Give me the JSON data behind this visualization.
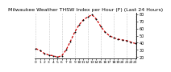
{
  "title": "Milwaukee Weather THSW Index per Hour (F) (Last 24 Hours)",
  "title_fontsize": 4.5,
  "bg_color": "#ffffff",
  "plot_bg_color": "#ffffff",
  "line_color": "#cc0000",
  "marker_color": "#000000",
  "grid_color": "#999999",
  "hours": [
    0,
    1,
    2,
    3,
    4,
    5,
    6,
    7,
    8,
    9,
    10,
    11,
    12,
    13,
    14,
    15,
    16,
    17,
    18,
    19,
    20,
    21,
    22,
    23
  ],
  "values": [
    32,
    29,
    25,
    23,
    22,
    20,
    22,
    30,
    42,
    55,
    65,
    72,
    76,
    79,
    73,
    63,
    55,
    50,
    47,
    45,
    44,
    43,
    41,
    39
  ],
  "ylim": [
    18,
    82
  ],
  "yticks": [
    20,
    30,
    40,
    50,
    60,
    70,
    80
  ],
  "ytick_fontsize": 3.5,
  "xtick_fontsize": 3.2,
  "xticks": [
    0,
    1,
    2,
    3,
    4,
    5,
    6,
    7,
    8,
    9,
    10,
    11,
    12,
    13,
    14,
    15,
    16,
    17,
    18,
    19,
    20,
    21,
    22,
    23
  ],
  "vgrid_ticks": [
    0,
    3,
    6,
    9,
    12,
    15,
    18,
    21,
    23
  ]
}
